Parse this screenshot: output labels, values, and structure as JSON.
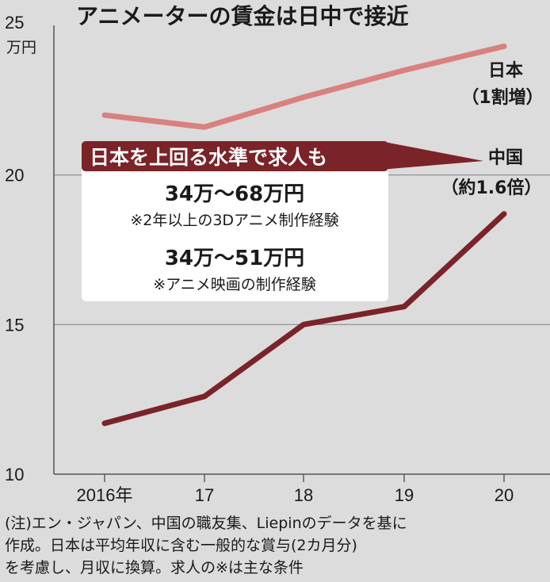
{
  "chart_data": {
    "type": "line",
    "title": "アニメーターの賃金は日中で接近",
    "ylabel": "万円",
    "ylim": [
      10,
      25
    ],
    "yticks": [
      "10",
      "15",
      "20",
      "25"
    ],
    "yticks_values": [
      10,
      15,
      20,
      25
    ],
    "categories": [
      "2016年",
      "17",
      "18",
      "19",
      "20"
    ],
    "grid": true,
    "series": [
      {
        "name": "日本",
        "label_line1": "日本",
        "label_line2": "（1割増）",
        "values": [
          22.0,
          21.6,
          22.6,
          23.5,
          24.3
        ],
        "color": "#d9817f"
      },
      {
        "name": "中国",
        "label_line1": "中国",
        "label_line2": "（約1.6倍）",
        "values": [
          11.7,
          12.6,
          15.0,
          15.6,
          18.7
        ],
        "color": "#7a2328"
      }
    ],
    "annotation": {
      "banner": "日本を上回る水準で求人も",
      "banner_color": "#7a2328",
      "item1_range": "34万〜68万円",
      "item1_cond": "※2年以上の3Dアニメ制作経験",
      "item2_range": "34万〜51万円",
      "item2_cond": "※アニメ映画の制作経験"
    }
  },
  "note": {
    "line1": "(注)エン・ジャパン、中国の職友集、Liepinのデータを基に",
    "line2": "作成。日本は平均年収に含む一般的な賞与(2カ月分)",
    "line3": "を考慮し、月収に換算。求人の※は主な条件"
  },
  "colors": {
    "background": "#dcdcdc",
    "grid": "#888888",
    "axis": "#555555"
  }
}
